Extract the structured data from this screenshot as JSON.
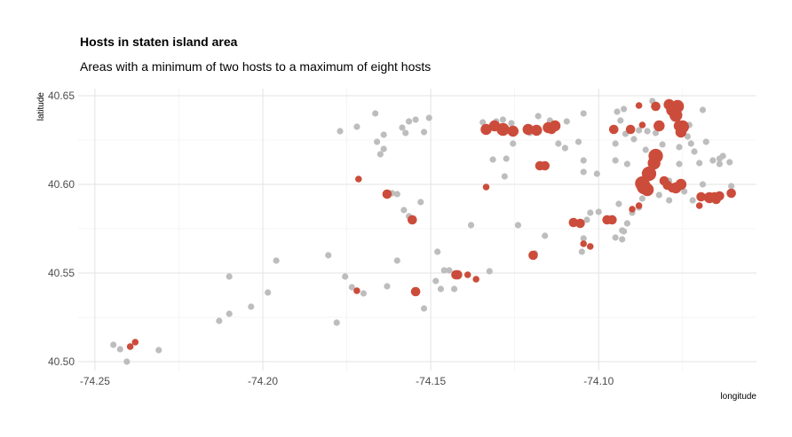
{
  "chart_data": {
    "type": "scatter",
    "title": "Hosts in staten island area",
    "subtitle": "Areas with a minimum of two hosts to a maximum of eight hosts",
    "xlabel": "longitude",
    "ylabel": "latitude",
    "xlim": [
      -74.255,
      -74.053
    ],
    "ylim": [
      40.495,
      40.654
    ],
    "x_ticks": [
      -74.25,
      -74.2,
      -74.15,
      -74.1
    ],
    "x_tick_labels": [
      "-74.25",
      "-74.20",
      "-74.15",
      "-74.10"
    ],
    "y_ticks": [
      40.5,
      40.55,
      40.6,
      40.65
    ],
    "y_tick_labels": [
      "40.50",
      "40.55",
      "40.60",
      "40.65"
    ],
    "grid": true,
    "legend": "none",
    "colors": {
      "background": "#ffffff",
      "grid_major": "#e3e3e3",
      "grid_minor": "#f1f1f1",
      "other_hosts": "#bdbdbd",
      "selected_hosts": "#cc4c3b"
    },
    "series": [
      {
        "color": "#bdbdbd",
        "points": [
          [
            -74.2445,
            40.5095
          ],
          [
            -74.2425,
            40.507
          ],
          [
            -74.2405,
            40.5
          ],
          [
            -74.2395,
            40.5085
          ],
          [
            -74.231,
            40.5065
          ],
          [
            -74.213,
            40.523
          ],
          [
            -74.21,
            40.527
          ],
          [
            -74.21,
            40.548
          ],
          [
            -74.2035,
            40.531
          ],
          [
            -74.1985,
            40.539
          ],
          [
            -74.196,
            40.557
          ],
          [
            -74.1805,
            40.56
          ],
          [
            -74.178,
            40.522
          ],
          [
            -74.1755,
            40.548
          ],
          [
            -74.1735,
            40.542
          ],
          [
            -74.17,
            40.5385
          ],
          [
            -74.163,
            40.5425
          ],
          [
            -74.16,
            40.557
          ],
          [
            -74.152,
            40.53
          ],
          [
            -74.177,
            40.63
          ],
          [
            -74.172,
            40.6325
          ],
          [
            -74.1665,
            40.64
          ],
          [
            -74.166,
            40.624
          ],
          [
            -74.164,
            40.62
          ],
          [
            -74.165,
            40.617
          ],
          [
            -74.164,
            40.628
          ],
          [
            -74.1615,
            40.595
          ],
          [
            -74.16,
            40.5945
          ],
          [
            -74.1585,
            40.632
          ],
          [
            -74.1575,
            40.629
          ],
          [
            -74.1565,
            40.6355
          ],
          [
            -74.1545,
            40.6365
          ],
          [
            -74.152,
            40.6295
          ],
          [
            -74.158,
            40.5855
          ],
          [
            -74.1565,
            40.582
          ],
          [
            -74.153,
            40.59
          ],
          [
            -74.1505,
            40.6375
          ],
          [
            -74.148,
            40.562
          ],
          [
            -74.1485,
            40.5455
          ],
          [
            -74.147,
            40.541
          ],
          [
            -74.146,
            40.5515
          ],
          [
            -74.1445,
            40.5515
          ],
          [
            -74.143,
            40.541
          ],
          [
            -74.138,
            40.577
          ],
          [
            -74.1325,
            40.551
          ],
          [
            -74.1345,
            40.635
          ],
          [
            -74.1335,
            40.63
          ],
          [
            -74.1305,
            40.6355
          ],
          [
            -74.1285,
            40.6365
          ],
          [
            -74.126,
            40.6345
          ],
          [
            -74.1255,
            40.6295
          ],
          [
            -74.1315,
            40.614
          ],
          [
            -74.1275,
            40.6145
          ],
          [
            -74.128,
            40.6045
          ],
          [
            -74.1255,
            40.623
          ],
          [
            -74.124,
            40.577
          ],
          [
            -74.1205,
            40.629
          ],
          [
            -74.118,
            40.6385
          ],
          [
            -74.1145,
            40.636
          ],
          [
            -74.119,
            40.561
          ],
          [
            -74.116,
            40.571
          ],
          [
            -74.112,
            40.623
          ],
          [
            -74.11,
            40.6205
          ],
          [
            -74.106,
            40.624
          ],
          [
            -74.1095,
            40.6355
          ],
          [
            -74.1045,
            40.64
          ],
          [
            -74.1045,
            40.6135
          ],
          [
            -74.1045,
            40.607
          ],
          [
            -74.1005,
            40.606
          ],
          [
            -74.1025,
            40.584
          ],
          [
            -74.1,
            40.5845
          ],
          [
            -74.1035,
            40.58
          ],
          [
            -74.105,
            40.562
          ],
          [
            -74.1045,
            40.5695
          ],
          [
            -74.095,
            40.57
          ],
          [
            -74.093,
            40.569
          ],
          [
            -74.0925,
            40.5735
          ],
          [
            -74.093,
            40.574
          ],
          [
            -74.0915,
            40.578
          ],
          [
            -74.094,
            40.589
          ],
          [
            -74.09,
            40.584
          ],
          [
            -74.095,
            40.6135
          ],
          [
            -74.0915,
            40.6115
          ],
          [
            -74.095,
            40.623
          ],
          [
            -74.092,
            40.6285
          ],
          [
            -74.0935,
            40.636
          ],
          [
            -74.0945,
            40.641
          ],
          [
            -74.0925,
            40.6425
          ],
          [
            -74.0895,
            40.6255
          ],
          [
            -74.088,
            40.6305
          ],
          [
            -74.086,
            40.6195
          ],
          [
            -74.0855,
            40.63
          ],
          [
            -74.084,
            40.647
          ],
          [
            -74.083,
            40.629
          ],
          [
            -74.081,
            40.6225
          ],
          [
            -74.0785,
            40.645
          ],
          [
            -74.0775,
            40.637
          ],
          [
            -74.076,
            40.621
          ],
          [
            -74.0735,
            40.627
          ],
          [
            -74.0725,
            40.623
          ],
          [
            -74.0745,
            40.596
          ],
          [
            -74.072,
            40.591
          ],
          [
            -74.07,
            40.612
          ],
          [
            -74.076,
            40.6115
          ],
          [
            -74.079,
            40.602
          ],
          [
            -74.082,
            40.594
          ],
          [
            -74.087,
            40.592
          ],
          [
            -74.088,
            40.587
          ],
          [
            -74.079,
            40.591
          ],
          [
            -74.068,
            40.593
          ],
          [
            -74.069,
            40.6
          ],
          [
            -74.066,
            40.6135
          ],
          [
            -74.064,
            40.6115
          ],
          [
            -74.061,
            40.6125
          ],
          [
            -74.063,
            40.616
          ],
          [
            -74.0605,
            40.599
          ],
          [
            -74.073,
            40.6335
          ],
          [
            -74.069,
            40.642
          ],
          [
            -74.068,
            40.624
          ],
          [
            -74.064,
            40.6145
          ],
          [
            -74.0765,
            40.638
          ],
          [
            -74.0715,
            40.6185
          ]
        ]
      },
      {
        "color": "#cc4c3b",
        "points": [
          [
            -74.2395,
            40.5085,
            1.2
          ],
          [
            -74.238,
            40.511,
            1.2
          ],
          [
            -74.172,
            40.54,
            1.2
          ],
          [
            -74.1715,
            40.603,
            1.2
          ],
          [
            -74.163,
            40.5945,
            2
          ],
          [
            -74.1555,
            40.58,
            2
          ],
          [
            -74.1545,
            40.5395,
            2
          ],
          [
            -74.1425,
            40.549,
            2
          ],
          [
            -74.142,
            40.549,
            2
          ],
          [
            -74.139,
            40.549,
            1.2
          ],
          [
            -74.1365,
            40.5465,
            1.2
          ],
          [
            -74.1335,
            40.5985,
            1.2
          ],
          [
            -74.1335,
            40.631,
            2.5
          ],
          [
            -74.131,
            40.633,
            2.5
          ],
          [
            -74.1285,
            40.631,
            3
          ],
          [
            -74.1255,
            40.63,
            2.5
          ],
          [
            -74.121,
            40.631,
            2.5
          ],
          [
            -74.1185,
            40.6305,
            2.5
          ],
          [
            -74.115,
            40.632,
            2.5
          ],
          [
            -74.113,
            40.633,
            2.5
          ],
          [
            -74.114,
            40.631,
            2
          ],
          [
            -74.1175,
            40.6105,
            2
          ],
          [
            -74.116,
            40.6105,
            2
          ],
          [
            -74.1195,
            40.56,
            2
          ],
          [
            -74.1075,
            40.5785,
            2
          ],
          [
            -74.1055,
            40.578,
            2
          ],
          [
            -74.1045,
            40.5665,
            1.2
          ],
          [
            -74.1025,
            40.565,
            1.2
          ],
          [
            -74.0975,
            40.58,
            2
          ],
          [
            -74.096,
            40.58,
            2
          ],
          [
            -74.09,
            40.586,
            1.2
          ],
          [
            -74.088,
            40.588,
            1.2
          ],
          [
            -74.087,
            40.6005,
            3.5
          ],
          [
            -74.0865,
            40.5985,
            3.5
          ],
          [
            -74.0855,
            40.597,
            3
          ],
          [
            -74.085,
            40.606,
            3.5
          ],
          [
            -74.083,
            40.616,
            3.5
          ],
          [
            -74.0835,
            40.612,
            3
          ],
          [
            -74.082,
            40.633,
            2.5
          ],
          [
            -74.083,
            40.644,
            2
          ],
          [
            -74.079,
            40.645,
            2.5
          ],
          [
            -74.078,
            40.642,
            3
          ],
          [
            -74.0765,
            40.644,
            3
          ],
          [
            -74.077,
            40.639,
            3
          ],
          [
            -74.076,
            40.633,
            2.5
          ],
          [
            -74.0755,
            40.6295,
            2.5
          ],
          [
            -74.075,
            40.6325,
            3
          ],
          [
            -74.077,
            40.598,
            2.5
          ],
          [
            -74.0755,
            40.6,
            2.5
          ],
          [
            -74.078,
            40.598,
            2
          ],
          [
            -74.0795,
            40.5995,
            2
          ],
          [
            -74.0805,
            40.602,
            2
          ],
          [
            -74.0695,
            40.593,
            2
          ],
          [
            -74.067,
            40.5925,
            2.5
          ],
          [
            -74.0655,
            40.593,
            2
          ],
          [
            -74.064,
            40.5935,
            2
          ],
          [
            -74.065,
            40.5915,
            2
          ],
          [
            -74.0605,
            40.595,
            2
          ],
          [
            -74.088,
            40.6445,
            1.2
          ],
          [
            -74.087,
            40.6335,
            1.2
          ],
          [
            -74.07,
            40.588,
            1.2
          ],
          [
            -74.0905,
            40.631,
            2
          ],
          [
            -74.0955,
            40.631,
            2
          ]
        ]
      }
    ]
  }
}
